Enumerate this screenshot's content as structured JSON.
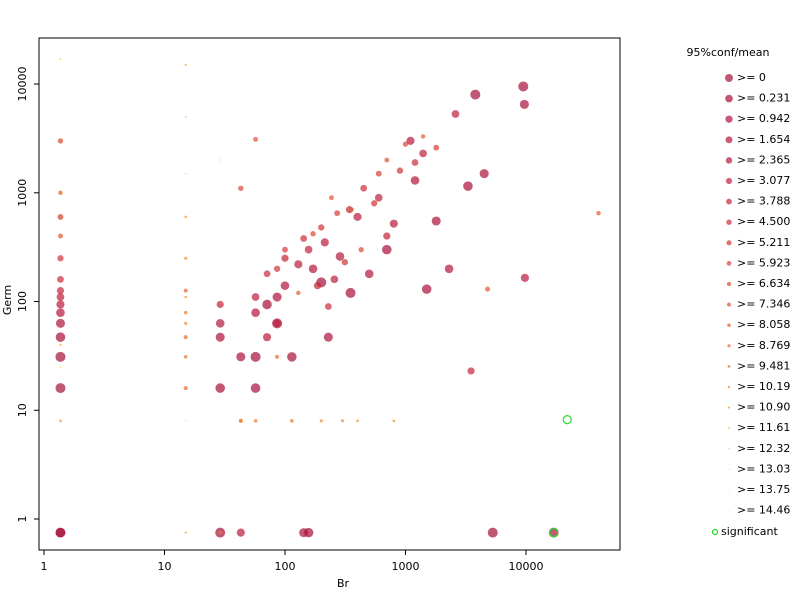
{
  "chart_data": {
    "type": "scatter",
    "xlabel": "Br",
    "ylabel": "Germ",
    "legend_title": "95%conf/mean",
    "xscale": "log",
    "yscale": "log",
    "xlim": [
      0.909,
      60300
    ],
    "ylim": [
      0.519,
      26500
    ],
    "xticks": [
      1,
      10,
      100,
      1000,
      10000
    ],
    "yticks": [
      1,
      10,
      100,
      1000,
      10000
    ],
    "legend": "right",
    "series": [
      {
        "name": ">= 0",
        "color": "#a50f3b",
        "x": [
          1.37,
          1.37,
          1.37,
          29,
          57,
          86,
          5300,
          17000,
          3800,
          9500,
          200,
          350
        ],
        "y": [
          0.75,
          16,
          31,
          0.75,
          31,
          63,
          0.75,
          0.75,
          8000,
          9500,
          150,
          120
        ]
      },
      {
        "name": ">= 0.231",
        "color": "#a8103b",
        "x": [
          1.37,
          1.37,
          29,
          57,
          71,
          114,
          157,
          1500,
          3300,
          700
        ],
        "y": [
          47,
          0.75,
          16,
          16,
          94,
          31,
          0.75,
          130,
          1150,
          300
        ]
      },
      {
        "name": ">= 0.942",
        "color": "#ad123b",
        "x": [
          1.37,
          29,
          43,
          86,
          143,
          229,
          9700,
          1800,
          4500
        ],
        "y": [
          63,
          47,
          31,
          110,
          0.75,
          47,
          6500,
          550,
          1500
        ]
      },
      {
        "name": ">= 1.654",
        "color": "#b3153b",
        "x": [
          1.37,
          29,
          57,
          100,
          171,
          286,
          500,
          2300,
          1200
        ],
        "y": [
          79,
          63,
          79,
          140,
          200,
          260,
          180,
          200,
          1300
        ]
      },
      {
        "name": ">= 2.365",
        "color": "#b9193b",
        "x": [
          1.37,
          43,
          71,
          129,
          214,
          400,
          800,
          1100,
          9800
        ],
        "y": [
          94,
          0.75,
          47,
          220,
          350,
          600,
          520,
          3000,
          165
        ]
      },
      {
        "name": ">= 3.077",
        "color": "#bf1e3a",
        "x": [
          1.37,
          57,
          86,
          157,
          257,
          600,
          1400,
          2600
        ],
        "y": [
          110,
          110,
          63,
          300,
          160,
          900,
          2300,
          5300
        ]
      },
      {
        "name": ">= 3.788",
        "color": "#c52439",
        "x": [
          1.37,
          29,
          100,
          186,
          343,
          700,
          3500
        ],
        "y": [
          126,
          94,
          250,
          140,
          700,
          400,
          23
        ]
      },
      {
        "name": ">= 4.500",
        "color": "#cb2b37",
        "x": [
          1.37,
          71,
          143,
          229,
          450,
          1200
        ],
        "y": [
          160,
          180,
          380,
          90,
          1100,
          1900
        ]
      },
      {
        "name": ">= 5.211",
        "color": "#d03335",
        "x": [
          1.37,
          86,
          200,
          314,
          550,
          900
        ],
        "y": [
          250,
          200,
          480,
          230,
          800,
          1600
        ]
      },
      {
        "name": ">= 5.923",
        "color": "#d63c33",
        "x": [
          1.37,
          100,
          271,
          600,
          1800
        ],
        "y": [
          600,
          300,
          650,
          1500,
          2600
        ]
      },
      {
        "name": ">= 6.634",
        "color": "#db4631",
        "x": [
          1.37,
          43,
          171,
          429,
          1000
        ],
        "y": [
          3000,
          1100,
          420,
          300,
          2800
        ]
      },
      {
        "name": ">= 7.346",
        "color": "#e0522f",
        "x": [
          1.37,
          57,
          243,
          700,
          4800
        ],
        "y": [
          400,
          3100,
          900,
          2000,
          130
        ]
      },
      {
        "name": ">= 8.058",
        "color": "#e55e2c",
        "x": [
          1.37,
          129,
          357,
          1400,
          40000
        ],
        "y": [
          1000,
          120,
          700,
          3300,
          650
        ]
      },
      {
        "name": ">= 8.769",
        "color": "#ea6b29",
        "x": [
          15,
          15,
          15,
          86,
          43
        ],
        "y": [
          16,
          47,
          126,
          31,
          8
        ]
      },
      {
        "name": ">= 9.481",
        "color": "#ee7826",
        "x": [
          15,
          15,
          29,
          57,
          114
        ],
        "y": [
          31,
          79,
          0.75,
          8,
          8
        ]
      },
      {
        "name": ">= 10.19",
        "color": "#f18523",
        "x": [
          15,
          15,
          43,
          200,
          300
        ],
        "y": [
          63,
          250,
          8,
          8,
          8
        ]
      },
      {
        "name": ">= 10.90",
        "color": "#f39220",
        "x": [
          15,
          15,
          1.37,
          400,
          800
        ],
        "y": [
          110,
          600,
          8,
          8,
          8
        ]
      },
      {
        "name": ">= 11.61",
        "color": "#f59e1e",
        "x": [
          15,
          15,
          1.37
        ],
        "y": [
          0.75,
          15000,
          40
        ]
      },
      {
        "name": ">= 12.32",
        "color": "#f6a91c",
        "x": [
          15,
          1.37
        ],
        "y": [
          5000,
          17000
        ]
      },
      {
        "name": ">= 13.03",
        "color": "#f7b41b",
        "x": [
          15,
          29
        ],
        "y": [
          1500,
          2000
        ]
      },
      {
        "name": ">= 13.75",
        "color": "#f8be1a",
        "x": [
          15
        ],
        "y": [
          8
        ]
      },
      {
        "name": ">= 14.46",
        "color": "#f9c81a",
        "x": [
          1.37
        ],
        "y": [
          25
        ]
      },
      {
        "name": "significant",
        "color": "#22dd22",
        "marker": "open",
        "x": [
          17000,
          22000
        ],
        "y": [
          0.75,
          8.2
        ]
      }
    ]
  }
}
